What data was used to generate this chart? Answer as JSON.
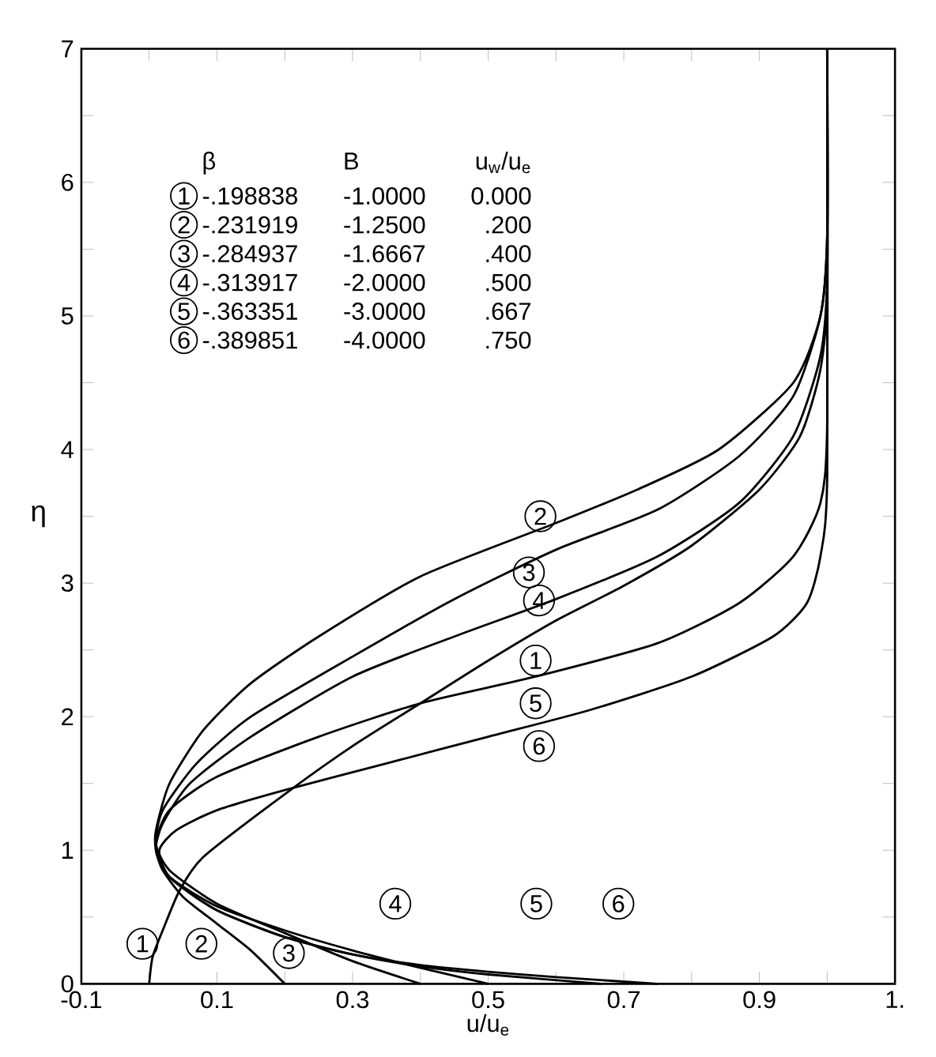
{
  "chart_data": {
    "type": "line",
    "xlabel": "u/u$_{e}$",
    "ylabel": "η",
    "xlim": [
      -0.1,
      1.1
    ],
    "ylim": [
      0,
      7
    ],
    "xticks": [
      -0.1,
      {
        "value": 0,
        "label": null
      },
      0.1,
      {
        "value": 0.2,
        "label": null
      },
      0.3,
      {
        "value": 0.4,
        "label": null
      },
      0.5,
      {
        "value": 0.6,
        "label": null
      },
      0.7,
      {
        "value": 0.8,
        "label": null
      },
      0.9,
      {
        "value": 1.0,
        "label": null
      },
      {
        "value": 1.1,
        "label": "1."
      }
    ],
    "yticks": [
      0,
      {
        "value": 0.5,
        "label": null
      },
      1,
      {
        "value": 1.5,
        "label": null
      },
      2,
      {
        "value": 2.5,
        "label": null
      },
      3,
      {
        "value": 3.5,
        "label": null
      },
      4,
      {
        "value": 4.5,
        "label": null
      },
      5,
      {
        "value": 5.5,
        "label": null
      },
      6,
      {
        "value": 6.5,
        "label": null
      },
      7
    ],
    "grid": false,
    "marker": "none",
    "line_style": "solid",
    "series": [
      {
        "color": "#000000",
        "x": [
          0,
          0.005,
          0.02,
          0.045,
          0.08,
          0.2,
          0.3,
          0.4,
          0.5,
          0.6,
          0.7,
          0.8,
          0.9,
          0.96,
          0.99,
          1,
          1
        ],
        "values": [
          0,
          0.2,
          0.4,
          0.7,
          0.95,
          1.42,
          1.78,
          2.1,
          2.42,
          2.72,
          2.98,
          3.28,
          3.7,
          4.1,
          4.6,
          5.2,
          7
        ]
      },
      {
        "color": "#000000",
        "x": [
          0.2,
          0.15,
          0.1,
          0.05,
          0.02,
          0.01,
          0.01,
          0.03,
          0.08,
          0.15,
          0.25,
          0.4,
          0.6,
          0.72,
          0.84,
          0.95,
          0.99,
          1,
          1
        ],
        "values": [
          0,
          0.25,
          0.45,
          0.65,
          0.85,
          1.0,
          1.15,
          1.5,
          1.9,
          2.25,
          2.6,
          3.05,
          3.45,
          3.7,
          4.0,
          4.5,
          5.0,
          5.6,
          7
        ]
      },
      {
        "color": "#000000",
        "x": [
          0.4,
          0.3,
          0.2,
          0.1,
          0.03,
          0.01,
          0.02,
          0.07,
          0.15,
          0.3,
          0.45,
          0.6,
          0.75,
          0.87,
          0.95,
          0.99,
          1,
          1
        ],
        "values": [
          0,
          0.17,
          0.38,
          0.6,
          0.85,
          1.05,
          1.3,
          1.65,
          2.0,
          2.45,
          2.88,
          3.25,
          3.55,
          3.95,
          4.4,
          5.0,
          5.6,
          7
        ]
      },
      {
        "color": "#000000",
        "x": [
          0.5,
          0.4,
          0.3,
          0.2,
          0.1,
          0.03,
          0.01,
          0.02,
          0.06,
          0.15,
          0.3,
          0.45,
          0.6,
          0.75,
          0.87,
          0.95,
          0.99,
          1,
          1
        ],
        "values": [
          0,
          0.12,
          0.25,
          0.4,
          0.58,
          0.8,
          1.0,
          1.2,
          1.5,
          1.85,
          2.3,
          2.6,
          2.88,
          3.2,
          3.6,
          4.1,
          4.7,
          5.3,
          7
        ]
      },
      {
        "color": "#000000",
        "x": [
          0.667,
          0.5,
          0.4,
          0.3,
          0.2,
          0.1,
          0.03,
          0.01,
          0.03,
          0.1,
          0.25,
          0.4,
          0.57,
          0.75,
          0.87,
          0.95,
          0.99,
          1,
          1
        ],
        "values": [
          0,
          0.07,
          0.13,
          0.22,
          0.35,
          0.55,
          0.8,
          1.05,
          1.3,
          1.55,
          1.85,
          2.1,
          2.3,
          2.55,
          2.85,
          3.2,
          3.6,
          4.2,
          7
        ]
      },
      {
        "color": "#000000",
        "x": [
          0.75,
          0.6,
          0.5,
          0.4,
          0.3,
          0.2,
          0.1,
          0.03,
          0.015,
          0.04,
          0.1,
          0.2,
          0.35,
          0.5,
          0.65,
          0.8,
          0.92,
          0.97,
          0.99,
          1,
          1
        ],
        "values": [
          0,
          0.05,
          0.09,
          0.14,
          0.22,
          0.35,
          0.55,
          0.8,
          1.0,
          1.15,
          1.3,
          1.45,
          1.65,
          1.85,
          2.05,
          2.3,
          2.6,
          2.85,
          3.2,
          3.8,
          7
        ]
      }
    ],
    "annotations": [
      "β",
      "B",
      "u$_{w}$/u$_{e}$",
      "1",
      "-.198838",
      "-1.0000",
      "0.000",
      "2",
      "-.231919",
      "-1.2500",
      ".200",
      "3",
      "-.284937",
      "-1.6667",
      ".400",
      "4",
      "-.313917",
      "-2.0000",
      ".500",
      "5",
      "-.363351",
      "-3.0000",
      ".667",
      "6",
      "-.389851",
      "-4.0000",
      ".750",
      {
        "text": "2",
        "x": 0.577,
        "y": 3.5
      },
      {
        "text": "3",
        "x": 0.56,
        "y": 3.08
      },
      {
        "text": "4",
        "x": 0.575,
        "y": 2.87
      },
      {
        "text": "1",
        "x": 0.57,
        "y": 2.42
      },
      {
        "text": "5",
        "x": 0.57,
        "y": 2.1
      },
      {
        "text": "6",
        "x": 0.575,
        "y": 1.78
      },
      {
        "text": "1",
        "x": -0.01,
        "y": 0.3
      },
      {
        "text": "2",
        "x": 0.077,
        "y": 0.3
      },
      {
        "text": "3",
        "x": 0.206,
        "y": 0.23
      },
      {
        "text": "4",
        "x": 0.363,
        "y": 0.6
      },
      {
        "text": "5",
        "x": 0.571,
        "y": 0.6
      },
      {
        "text": "6",
        "x": 0.692,
        "y": 0.6
      }
    ]
  }
}
